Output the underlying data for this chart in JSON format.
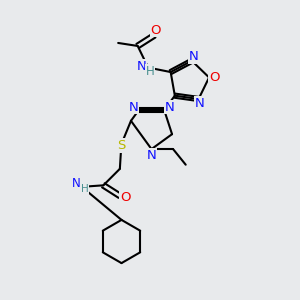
{
  "bg_color": "#e8eaec",
  "atom_colors": {
    "C": "#000000",
    "N": "#1010ff",
    "O": "#ee0000",
    "S": "#b8b800",
    "H": "#4a9090"
  },
  "lw": 1.5,
  "fs": 9.5,
  "fsm": 8.5
}
